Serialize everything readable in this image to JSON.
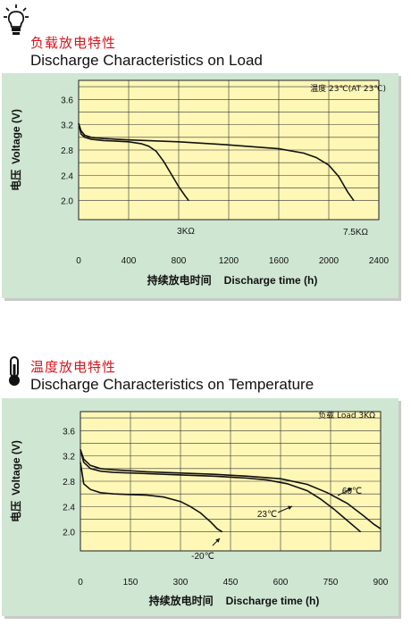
{
  "chart_data": [
    {
      "type": "line",
      "heading_cn": "负载放电特性",
      "title": "Discharge Characteristics on Load",
      "note": "温度 23℃(AT 23℃)",
      "xlabel_cn": "持续放电时间",
      "xlabel": "Discharge time (h)",
      "ylabel_cn": "电压",
      "ylabel": "Voltage (V)",
      "xlim": [
        0,
        2400
      ],
      "ylim": [
        1.7,
        3.9
      ],
      "x_ticks": [
        "0",
        "400",
        "800",
        "1200",
        "1600",
        "2000",
        "2400"
      ],
      "y_ticks": [
        "2.0",
        "2.4",
        "2.8",
        "3.2",
        "3.6"
      ],
      "grid": true,
      "series": [
        {
          "name": "3KΩ",
          "x": [
            0,
            20,
            50,
            100,
            200,
            300,
            400,
            500,
            560,
            620,
            680,
            740,
            800,
            850,
            880
          ],
          "y": [
            3.22,
            3.05,
            3.0,
            2.97,
            2.95,
            2.94,
            2.93,
            2.9,
            2.86,
            2.78,
            2.62,
            2.42,
            2.22,
            2.08,
            2.0
          ]
        },
        {
          "name": "7.5KΩ",
          "x": [
            0,
            20,
            50,
            100,
            200,
            400,
            800,
            1200,
            1600,
            1800,
            1900,
            2000,
            2080,
            2150,
            2200
          ],
          "y": [
            3.22,
            3.1,
            3.03,
            3.0,
            2.98,
            2.96,
            2.93,
            2.88,
            2.82,
            2.75,
            2.68,
            2.56,
            2.38,
            2.14,
            2.0
          ]
        }
      ]
    },
    {
      "type": "line",
      "heading_cn": "温度放电特性",
      "title": "Discharge Characteristics on Temperature",
      "note": "负载  Load 3KΩ",
      "xlabel_cn": "持续放电时间",
      "xlabel": "Discharge time (h)",
      "ylabel_cn": "电压",
      "ylabel": "Voltage (V)",
      "xlim": [
        0,
        900
      ],
      "ylim": [
        1.7,
        3.9
      ],
      "x_ticks": [
        "0",
        "150",
        "300",
        "450",
        "600",
        "750",
        "900"
      ],
      "y_ticks": [
        "2.0",
        "2.4",
        "2.8",
        "3.2",
        "3.6"
      ],
      "grid": true,
      "series": [
        {
          "name": "-20℃",
          "x": [
            0,
            10,
            30,
            60,
            100,
            150,
            200,
            250,
            300,
            330,
            360,
            390,
            410,
            425
          ],
          "y": [
            3.1,
            2.76,
            2.67,
            2.62,
            2.6,
            2.59,
            2.58,
            2.55,
            2.48,
            2.4,
            2.3,
            2.16,
            2.05,
            2.0
          ]
        },
        {
          "name": "23℃",
          "x": [
            0,
            10,
            30,
            60,
            100,
            200,
            300,
            400,
            500,
            560,
            620,
            680,
            720,
            760,
            800,
            840
          ],
          "y": [
            3.3,
            3.1,
            3.0,
            2.96,
            2.94,
            2.92,
            2.9,
            2.88,
            2.85,
            2.82,
            2.76,
            2.65,
            2.52,
            2.36,
            2.18,
            2.0
          ]
        },
        {
          "name": "60℃",
          "x": [
            0,
            10,
            30,
            60,
            100,
            200,
            300,
            400,
            500,
            600,
            680,
            740,
            800,
            850,
            880,
            900
          ],
          "y": [
            3.3,
            3.15,
            3.05,
            3.0,
            2.98,
            2.95,
            2.93,
            2.91,
            2.88,
            2.84,
            2.75,
            2.62,
            2.45,
            2.25,
            2.12,
            2.05
          ]
        }
      ]
    }
  ]
}
